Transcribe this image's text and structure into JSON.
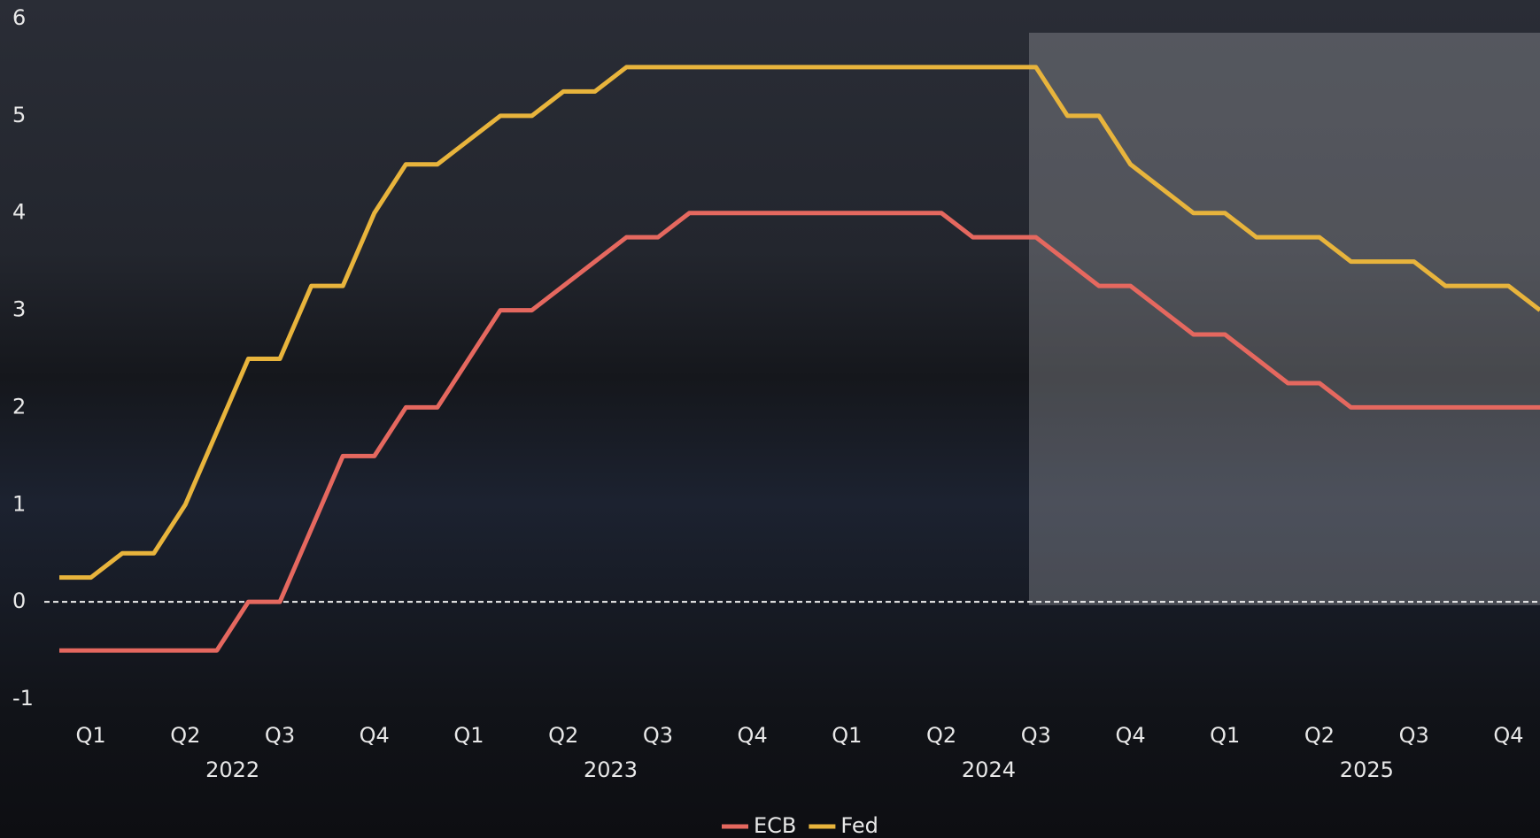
{
  "chart_data": {
    "type": "line",
    "categories": [
      null,
      "Q1",
      null,
      null,
      "Q2",
      null,
      null,
      "Q3",
      null,
      null,
      "Q4",
      null,
      null,
      "Q1",
      null,
      null,
      "Q2",
      null,
      null,
      "Q3",
      null,
      null,
      "Q4",
      null,
      null,
      "Q1",
      null,
      null,
      "Q2",
      null,
      null,
      "Q3",
      null,
      null,
      "Q4",
      null,
      null,
      "Q1",
      null,
      null,
      "Q2",
      null,
      null,
      "Q3",
      null,
      null,
      "Q4",
      null
    ],
    "year_groups": [
      "2022",
      "2023",
      "2024",
      "2025"
    ],
    "series": [
      {
        "name": "ECB",
        "color": "#e5685f",
        "values": [
          -0.5,
          -0.5,
          -0.5,
          -0.5,
          -0.5,
          -0.5,
          0,
          0,
          0.75,
          1.5,
          1.5,
          2,
          2,
          2.5,
          3,
          3,
          3.25,
          3.5,
          3.75,
          3.75,
          4,
          4,
          4,
          4,
          4,
          4,
          4,
          4,
          4,
          3.75,
          3.75,
          3.75,
          3.5,
          3.25,
          3.25,
          3,
          2.75,
          2.75,
          2.5,
          2.25,
          2.25,
          2,
          2,
          2,
          2,
          2,
          2,
          2
        ]
      },
      {
        "name": "Fed",
        "color": "#e8b43c",
        "values": [
          0.25,
          0.25,
          0.5,
          0.5,
          1,
          1.75,
          2.5,
          2.5,
          3.25,
          3.25,
          4,
          4.5,
          4.5,
          4.75,
          5,
          5,
          5.25,
          5.25,
          5.5,
          5.5,
          5.5,
          5.5,
          5.5,
          5.5,
          5.5,
          5.5,
          5.5,
          5.5,
          5.5,
          5.5,
          5.5,
          5.5,
          5,
          5,
          4.5,
          4.25,
          4,
          4,
          3.75,
          3.75,
          3.75,
          3.5,
          3.5,
          3.5,
          3.25,
          3.25,
          3.25,
          3
        ]
      }
    ],
    "ylim": [
      -1,
      6
    ],
    "yticks": [
      -1,
      0,
      1,
      2,
      3,
      4,
      5,
      6
    ],
    "zero_line": true,
    "legend": "bottom"
  }
}
